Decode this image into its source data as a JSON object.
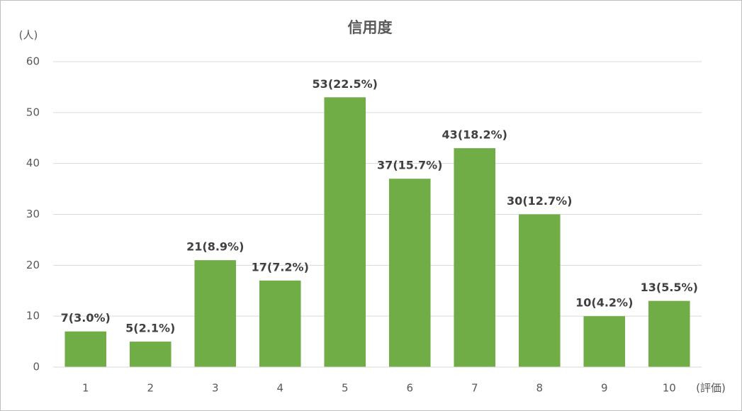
{
  "chart_data": {
    "type": "bar",
    "title": "信用度",
    "y_label": "(人)",
    "x_label": "(評価)",
    "categories": [
      "1",
      "2",
      "3",
      "4",
      "5",
      "6",
      "7",
      "8",
      "9",
      "10"
    ],
    "values": [
      7,
      5,
      21,
      17,
      53,
      37,
      43,
      30,
      10,
      13
    ],
    "value_labels": [
      "7(3.0%)",
      "5(2.1%)",
      "21(8.9%)",
      "17(7.2%)",
      "53(22.5%)",
      "37(15.7%)",
      "43(18.2%)",
      "30(12.7%)",
      "10(4.2%)",
      "13(5.5%)"
    ],
    "color": "#70ad47",
    "ylim": [
      0,
      60
    ],
    "yticks": [
      0,
      10,
      20,
      30,
      40,
      50,
      60
    ],
    "grid": true
  }
}
